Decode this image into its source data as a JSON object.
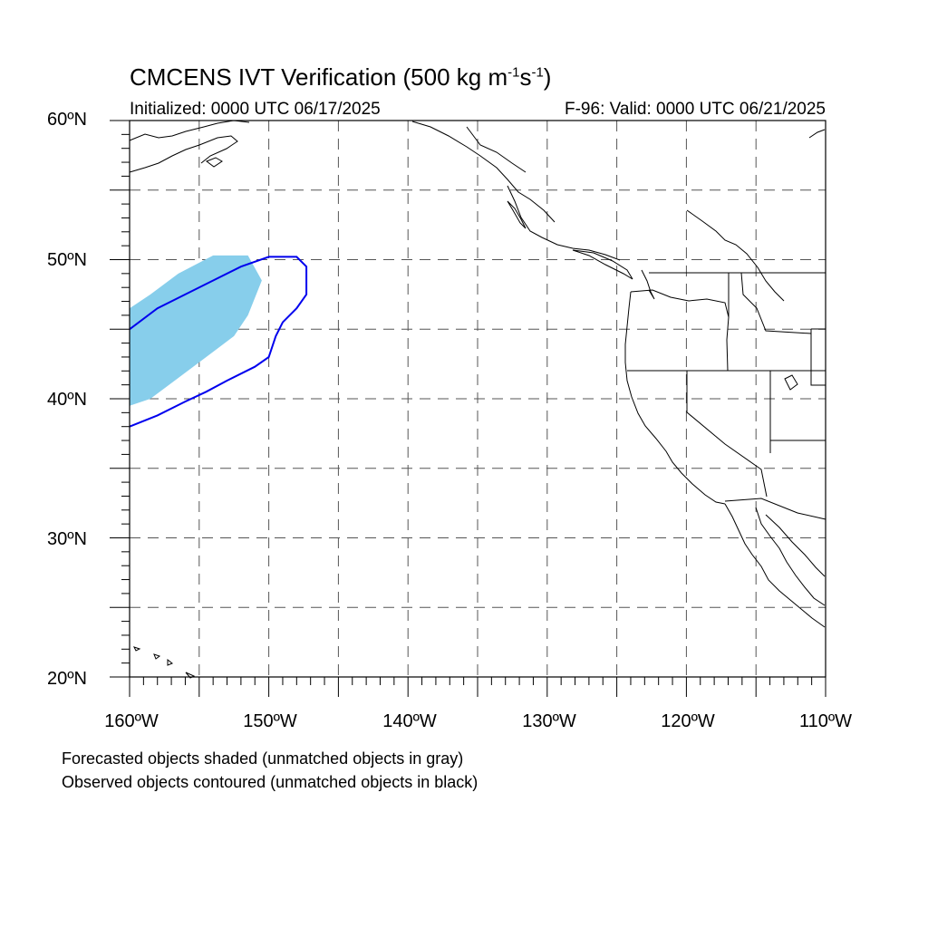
{
  "title": {
    "main": "CMCENS IVT Verification (500 kg m",
    "exp1": "-1",
    "mid": "s",
    "exp2": "-1",
    "close": ")"
  },
  "subtitle": {
    "left": "Initialized: 0000 UTC 06/17/2025",
    "right": "F-96: Valid: 0000 UTC 06/21/2025"
  },
  "axes": {
    "lat_labels": [
      "60ºN",
      "50ºN",
      "40ºN",
      "30ºN",
      "20ºN"
    ],
    "lon_labels": [
      "160ºW",
      "150ºW",
      "140ºW",
      "130ºW",
      "120ºW",
      "110ºW"
    ],
    "lat_range": [
      20,
      60
    ],
    "lon_range": [
      -160,
      -110
    ],
    "grid_interval_deg": 5,
    "grid_style": "dashed"
  },
  "legend_notes": [
    "Forecasted objects shaded (unmatched objects in gray)",
    "Observed objects contoured (unmatched objects in black)"
  ],
  "colors": {
    "forecast_shading": "#87ceeb",
    "observed_contour": "#0000ee",
    "coastline": "#000000",
    "gridline": "#555555"
  },
  "objects": {
    "forecast_shaded_lonlat": [
      [
        -160,
        39.5
      ],
      [
        -158.5,
        40
      ],
      [
        -156.5,
        41.5
      ],
      [
        -154.5,
        43
      ],
      [
        -152.5,
        44.5
      ],
      [
        -151.5,
        46
      ],
      [
        -150.5,
        48.5
      ],
      [
        -151.5,
        50.3
      ],
      [
        -154,
        50.3
      ],
      [
        -156.5,
        49
      ],
      [
        -158.5,
        47.5
      ],
      [
        -160,
        46.5
      ]
    ],
    "observed_contour_lonlat": [
      [
        -160,
        38
      ],
      [
        -158,
        38.8
      ],
      [
        -156,
        39.8
      ],
      [
        -154.5,
        40.5
      ],
      [
        -153,
        41.3
      ],
      [
        -151,
        42.3
      ],
      [
        -150,
        43
      ],
      [
        -149.5,
        44.5
      ],
      [
        -149,
        45.5
      ],
      [
        -148,
        46.5
      ],
      [
        -147.3,
        47.5
      ],
      [
        -147.3,
        49.5
      ],
      [
        -148,
        50.2
      ],
      [
        -150,
        50.2
      ],
      [
        -152,
        49.5
      ],
      [
        -154,
        48.5
      ],
      [
        -156,
        47.5
      ],
      [
        -158,
        46.5
      ],
      [
        -160,
        45
      ]
    ]
  }
}
